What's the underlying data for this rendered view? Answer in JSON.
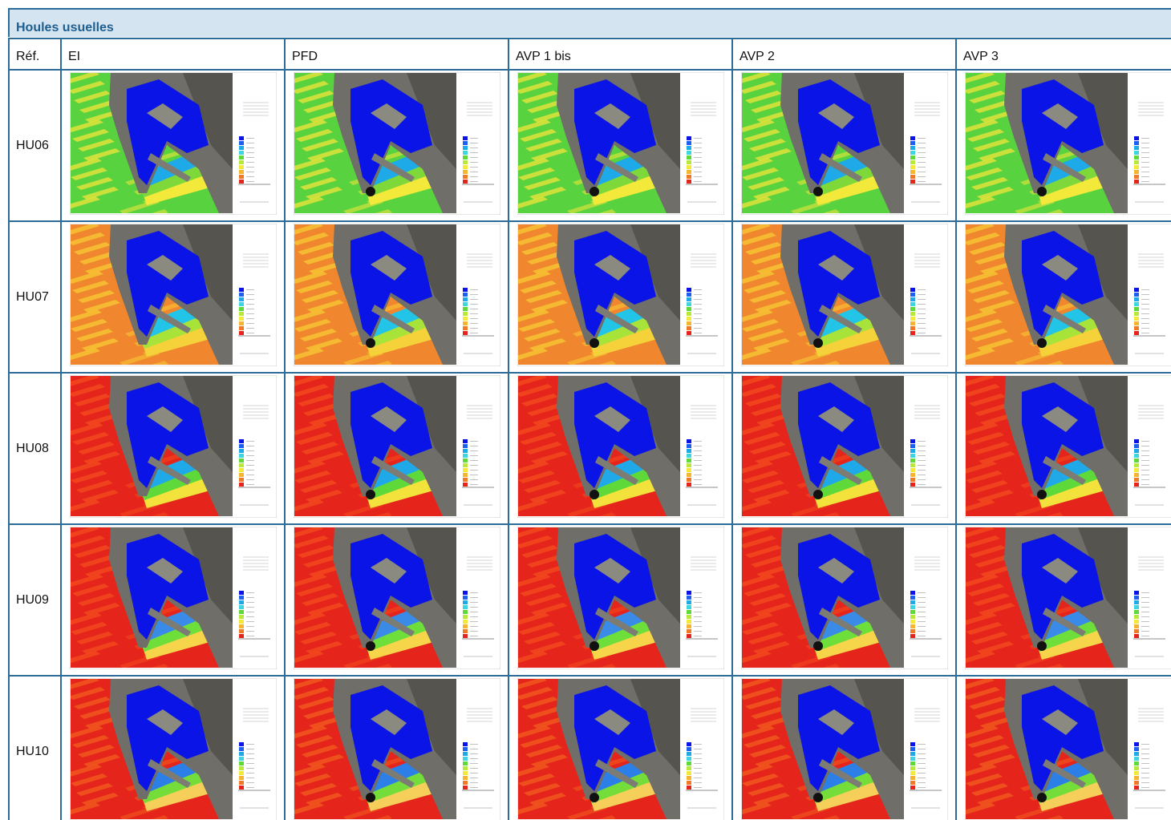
{
  "header": {
    "title": "Houles usuelles"
  },
  "table": {
    "columns": [
      "Réf.",
      "EI",
      "PFD",
      "AVP 1 bis",
      "AVP 2",
      "AVP 3"
    ],
    "rows": [
      [
        "HU06"
      ],
      [
        "HU07"
      ],
      [
        "HU08"
      ],
      [
        "HU09"
      ],
      [
        "HU10"
      ]
    ]
  }
}
